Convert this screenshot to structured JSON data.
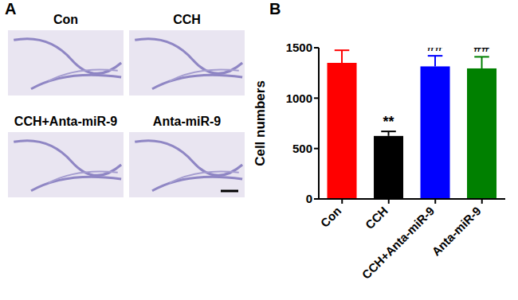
{
  "panel_labels": [
    "A",
    "B"
  ],
  "images": {
    "labels": [
      "Con",
      "CCH",
      "CCH+Anta-miR-9",
      "Anta-miR-9"
    ]
  },
  "chart_data": {
    "type": "bar",
    "categories": [
      "Con",
      "CCH",
      "CCH+Anta-miR-9",
      "Anta-miR-9"
    ],
    "values": [
      1350,
      625,
      1315,
      1295
    ],
    "errors": [
      125,
      45,
      105,
      115
    ],
    "colors": [
      "#ff0000",
      "#000000",
      "#0000ff",
      "#008000"
    ],
    "ylabel": "Cell numbers",
    "ylim": [
      0,
      1500
    ],
    "yticks": [
      0,
      500,
      1000,
      1500
    ],
    "grid": false,
    "annotations": [
      {
        "category": "CCH",
        "text": "**"
      },
      {
        "category": "CCH+Anta-miR-9",
        "text": "##"
      },
      {
        "category": "Anta-miR-9",
        "text": "##"
      }
    ]
  }
}
